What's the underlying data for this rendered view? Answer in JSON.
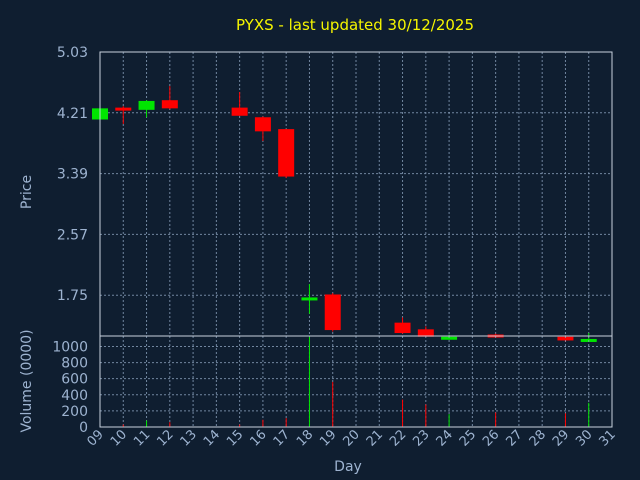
{
  "chart_data": {
    "type": "candlestick",
    "title": "PYXS - last updated 30/12/2025",
    "price_axis": {
      "label": "Price",
      "ticks": [
        "5.03",
        "4.21",
        "3.39",
        "2.57",
        "1.75"
      ],
      "ylim": [
        1.2,
        5.03
      ]
    },
    "volume_axis": {
      "label": "Volume (0000)",
      "ticks": [
        "1000",
        "800",
        "600",
        "400",
        "200",
        "0"
      ],
      "ylim": [
        0,
        1130
      ]
    },
    "xlabel": "Day",
    "days": [
      "09",
      "10",
      "11",
      "12",
      "13",
      "14",
      "15",
      "16",
      "17",
      "18",
      "19",
      "20",
      "21",
      "22",
      "23",
      "24",
      "25",
      "26",
      "27",
      "28",
      "29",
      "30",
      "31"
    ],
    "candles": [
      {
        "day": "09",
        "open": 4.12,
        "close": 4.27,
        "high": 4.28,
        "low": 4.1,
        "volume": 20
      },
      {
        "day": "10",
        "open": 4.28,
        "close": 4.26,
        "high": 4.3,
        "low": 4.06,
        "volume": 30
      },
      {
        "day": "11",
        "open": 4.25,
        "close": 4.37,
        "high": 4.38,
        "low": 4.15,
        "volume": 80
      },
      {
        "day": "12",
        "open": 4.38,
        "close": 4.27,
        "high": 4.57,
        "low": 4.26,
        "volume": 60
      },
      {
        "day": "15",
        "open": 4.28,
        "close": 4.17,
        "high": 4.49,
        "low": 4.17,
        "volume": 30
      },
      {
        "day": "16",
        "open": 4.15,
        "close": 3.96,
        "high": 4.16,
        "low": 3.83,
        "volume": 90
      },
      {
        "day": "17",
        "open": 3.99,
        "close": 3.35,
        "high": 3.99,
        "low": 3.33,
        "volume": 110
      },
      {
        "day": "18",
        "open": 1.7,
        "close": 1.72,
        "high": 1.9,
        "low": 1.5,
        "volume": 1120
      },
      {
        "day": "19",
        "open": 1.76,
        "close": 1.28,
        "high": 1.78,
        "low": 1.26,
        "volume": 560
      },
      {
        "day": "22",
        "open": 1.38,
        "close": 1.24,
        "high": 1.45,
        "low": 1.23,
        "volume": 340
      },
      {
        "day": "23",
        "open": 1.29,
        "close": 1.19,
        "high": 1.33,
        "low": 1.19,
        "volume": 280
      },
      {
        "day": "24",
        "open": 1.18,
        "close": 1.19,
        "high": 1.22,
        "low": 1.15,
        "volume": 160
      },
      {
        "day": "26",
        "open": 1.22,
        "close": 1.19,
        "high": 1.23,
        "low": 1.18,
        "volume": 180
      },
      {
        "day": "29",
        "open": 1.19,
        "close": 1.14,
        "high": 1.21,
        "low": 1.12,
        "volume": 170
      },
      {
        "day": "30",
        "open": 1.13,
        "close": 1.16,
        "high": 1.24,
        "low": 1.12,
        "volume": 300
      }
    ],
    "colors": {
      "up": "#00e600",
      "down": "#ff0000",
      "background": "#0f1e30",
      "title": "#f5f500",
      "text": "#9db3d0"
    },
    "grid": true
  }
}
